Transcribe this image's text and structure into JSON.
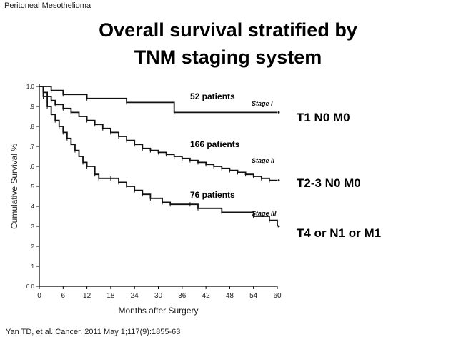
{
  "header": {
    "label": "Peritoneal Mesothelioma"
  },
  "title": {
    "line1": "Overall survival stratified by",
    "line2": "TNM staging system"
  },
  "annotations": {
    "stage1_patients": "52 patients",
    "stage2_patients": "166 patients",
    "stage3_patients": "76 patients"
  },
  "stage_labels": [
    "T1 N0 M0",
    "T2-3 N0 M0",
    "T4 or N1 or M1"
  ],
  "citation": "Yan TD, et al. Cancer. 2011 May 1;117(9):1855-63",
  "chart_data": {
    "type": "line",
    "step": true,
    "title": "Overall survival stratified by TNM staging system",
    "xlabel": "Months after Surgery",
    "ylabel": "Cumulative Survival %",
    "xlim": [
      0,
      60
    ],
    "ylim": [
      0,
      1.0
    ],
    "xticks": [
      "0",
      "6",
      "12",
      "18",
      "24",
      "30",
      "36",
      "42",
      "48",
      "54",
      "60"
    ],
    "yticks": [
      "0.0",
      ".1",
      ".2",
      ".3",
      ".4",
      ".5",
      ".6",
      ".7",
      ".8",
      ".9",
      "1.0"
    ],
    "series": [
      {
        "name": "Stage I",
        "x": [
          0,
          3,
          6,
          12,
          22,
          34,
          60
        ],
        "y": [
          1.0,
          0.98,
          0.96,
          0.94,
          0.92,
          0.87,
          0.87
        ]
      },
      {
        "name": "Stage II",
        "x": [
          0,
          1,
          2,
          3,
          4,
          6,
          8,
          10,
          12,
          14,
          16,
          18,
          20,
          22,
          24,
          26,
          28,
          30,
          32,
          34,
          36,
          38,
          40,
          42,
          44,
          46,
          48,
          50,
          52,
          54,
          56,
          58,
          60
        ],
        "y": [
          1.0,
          0.97,
          0.95,
          0.93,
          0.91,
          0.89,
          0.87,
          0.85,
          0.83,
          0.81,
          0.79,
          0.77,
          0.75,
          0.73,
          0.71,
          0.69,
          0.68,
          0.67,
          0.66,
          0.65,
          0.64,
          0.63,
          0.62,
          0.61,
          0.6,
          0.59,
          0.58,
          0.57,
          0.56,
          0.55,
          0.54,
          0.53,
          0.53
        ]
      },
      {
        "name": "Stage III",
        "x": [
          0,
          1,
          2,
          3,
          4,
          5,
          6,
          7,
          8,
          9,
          10,
          11,
          12,
          14,
          15,
          18,
          20,
          22,
          24,
          26,
          28,
          31,
          33,
          38,
          40,
          46,
          54,
          58,
          60
        ],
        "y": [
          1.0,
          0.95,
          0.9,
          0.86,
          0.83,
          0.8,
          0.77,
          0.74,
          0.71,
          0.68,
          0.65,
          0.62,
          0.6,
          0.56,
          0.54,
          0.54,
          0.52,
          0.5,
          0.48,
          0.46,
          0.44,
          0.42,
          0.41,
          0.41,
          0.39,
          0.37,
          0.35,
          0.33,
          0.3
        ]
      }
    ],
    "series_labels": [
      "Stage I",
      "Stage II",
      "Stage III"
    ],
    "legend": "inline-right"
  }
}
